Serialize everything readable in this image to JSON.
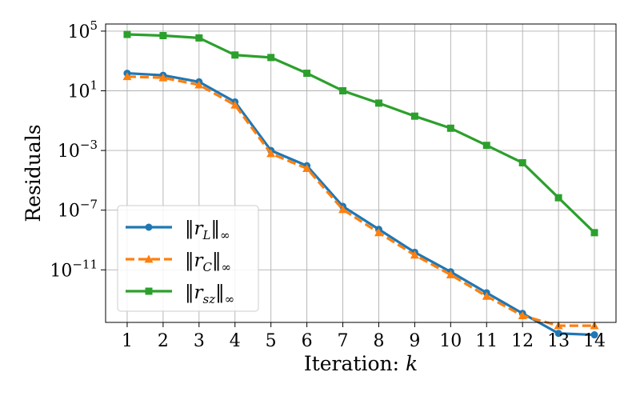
{
  "chart_data": {
    "type": "line",
    "title": "",
    "xlabel": "Iteration: k",
    "ylabel": "Residuals",
    "yscale": "log",
    "x": [
      1,
      2,
      3,
      4,
      5,
      6,
      7,
      8,
      9,
      10,
      11,
      12,
      13,
      14
    ],
    "xlim": [
      0.4,
      14.6
    ],
    "ylim": [
      3e-15,
      300000.0
    ],
    "y_ticks": [
      {
        "value": 100000.0,
        "label": "10^5"
      },
      {
        "value": 10,
        "label": "10^1"
      },
      {
        "value": 0.001,
        "label": "10^-3"
      },
      {
        "value": 1e-07,
        "label": "10^-7"
      },
      {
        "value": 1e-11,
        "label": "10^-11"
      }
    ],
    "grid": true,
    "legend_position": "bottom-left",
    "series": [
      {
        "name": "||r_L||_∞",
        "color": "#1f77b4",
        "marker": "circle",
        "linestyle": "solid",
        "values": [
          150,
          110,
          40,
          1.8,
          0.001,
          9.5e-05,
          1.8e-07,
          5.2e-09,
          1.5e-10,
          7.4e-12,
          2.9e-13,
          1.2e-14,
          5.5e-16,
          4.4e-16
        ]
      },
      {
        "name": "||r_C||_∞",
        "color": "#ff7f0e",
        "marker": "triangle",
        "linestyle": "dashed",
        "values": [
          90,
          75,
          25,
          1.1,
          0.00062,
          6.2e-05,
          1.1e-07,
          3.1e-09,
          9.8e-11,
          4.7e-12,
          1.7e-13,
          8.5e-15,
          1.8e-15,
          1.8e-15
        ]
      },
      {
        "name": "||r_sz||_∞",
        "color": "#2ca02c",
        "marker": "square",
        "linestyle": "solid",
        "values": [
          60000,
          50000,
          35000,
          2500,
          1700,
          150,
          10,
          1.5,
          0.2,
          0.031,
          0.0022,
          0.00015,
          6.8e-07,
          3.1e-09
        ]
      }
    ]
  }
}
